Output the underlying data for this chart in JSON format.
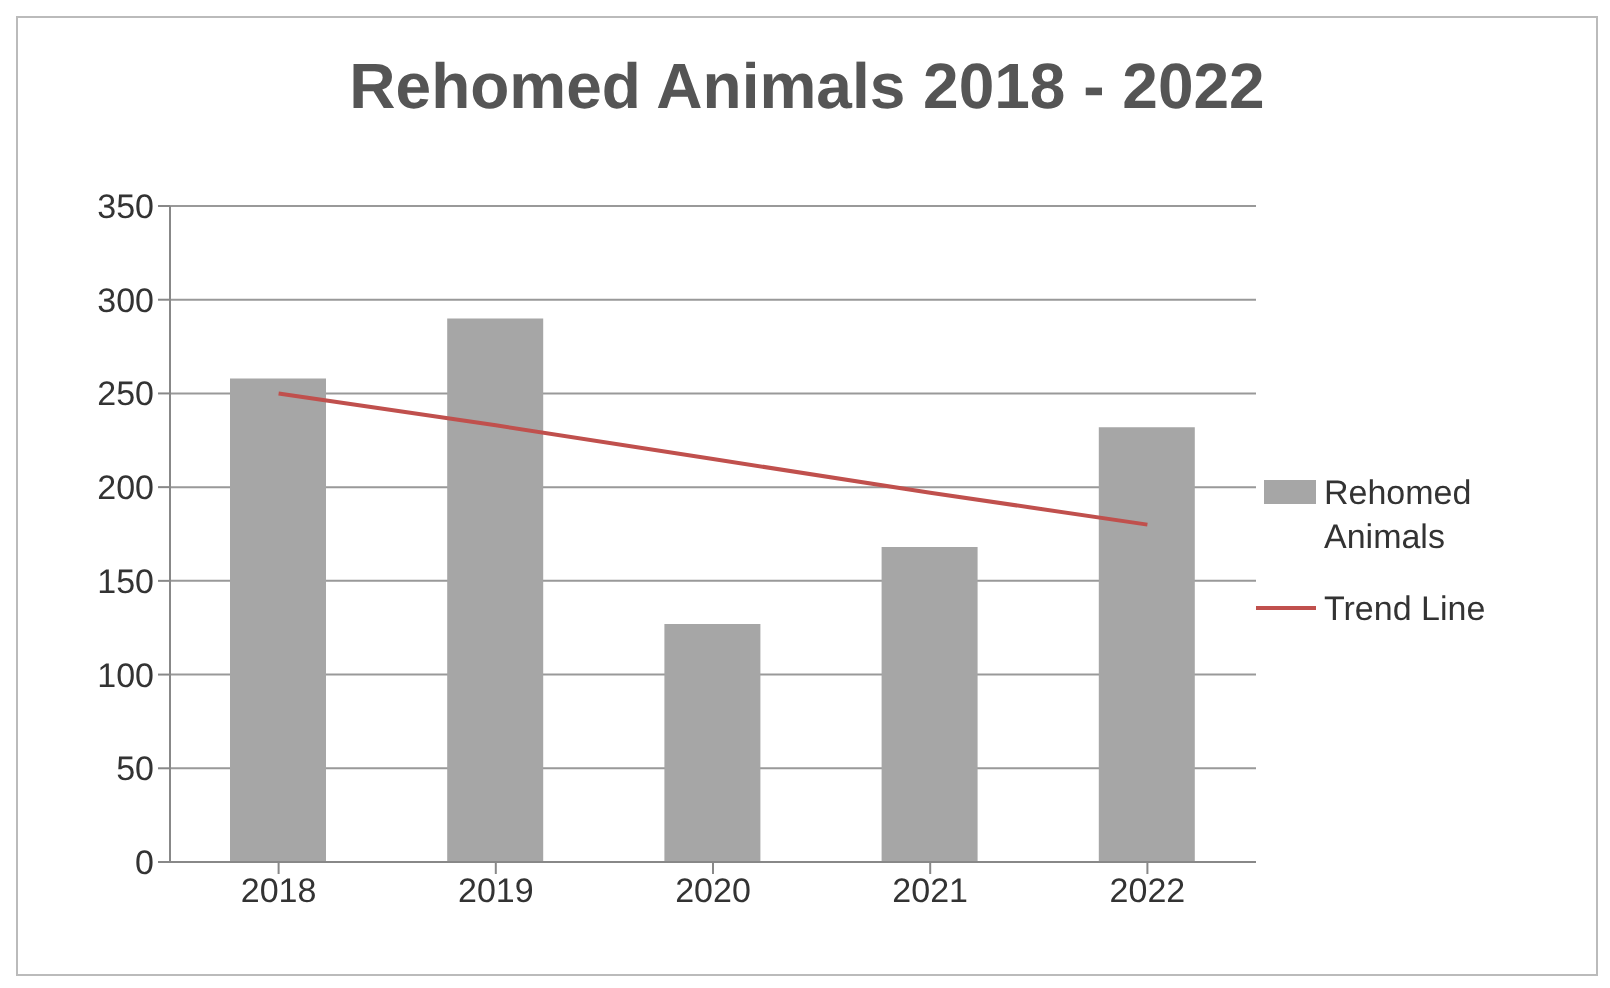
{
  "chart_data": {
    "type": "bar",
    "title": "Rehomed Animals 2018 - 2022",
    "categories": [
      "2018",
      "2019",
      "2020",
      "2021",
      "2022"
    ],
    "series": [
      {
        "name": "Rehomed Animals",
        "color": "#a6a6a6",
        "values": [
          258,
          290,
          127,
          168,
          232
        ]
      },
      {
        "name": "Trend Line",
        "type": "line",
        "color": "#c0504d",
        "values": [
          250,
          233,
          215,
          197,
          180
        ],
        "marker": "none"
      }
    ],
    "ylim": [
      0,
      350
    ],
    "yticks": [
      0,
      50,
      100,
      150,
      200,
      250,
      300,
      350
    ],
    "grid": "y",
    "legend": "right"
  }
}
